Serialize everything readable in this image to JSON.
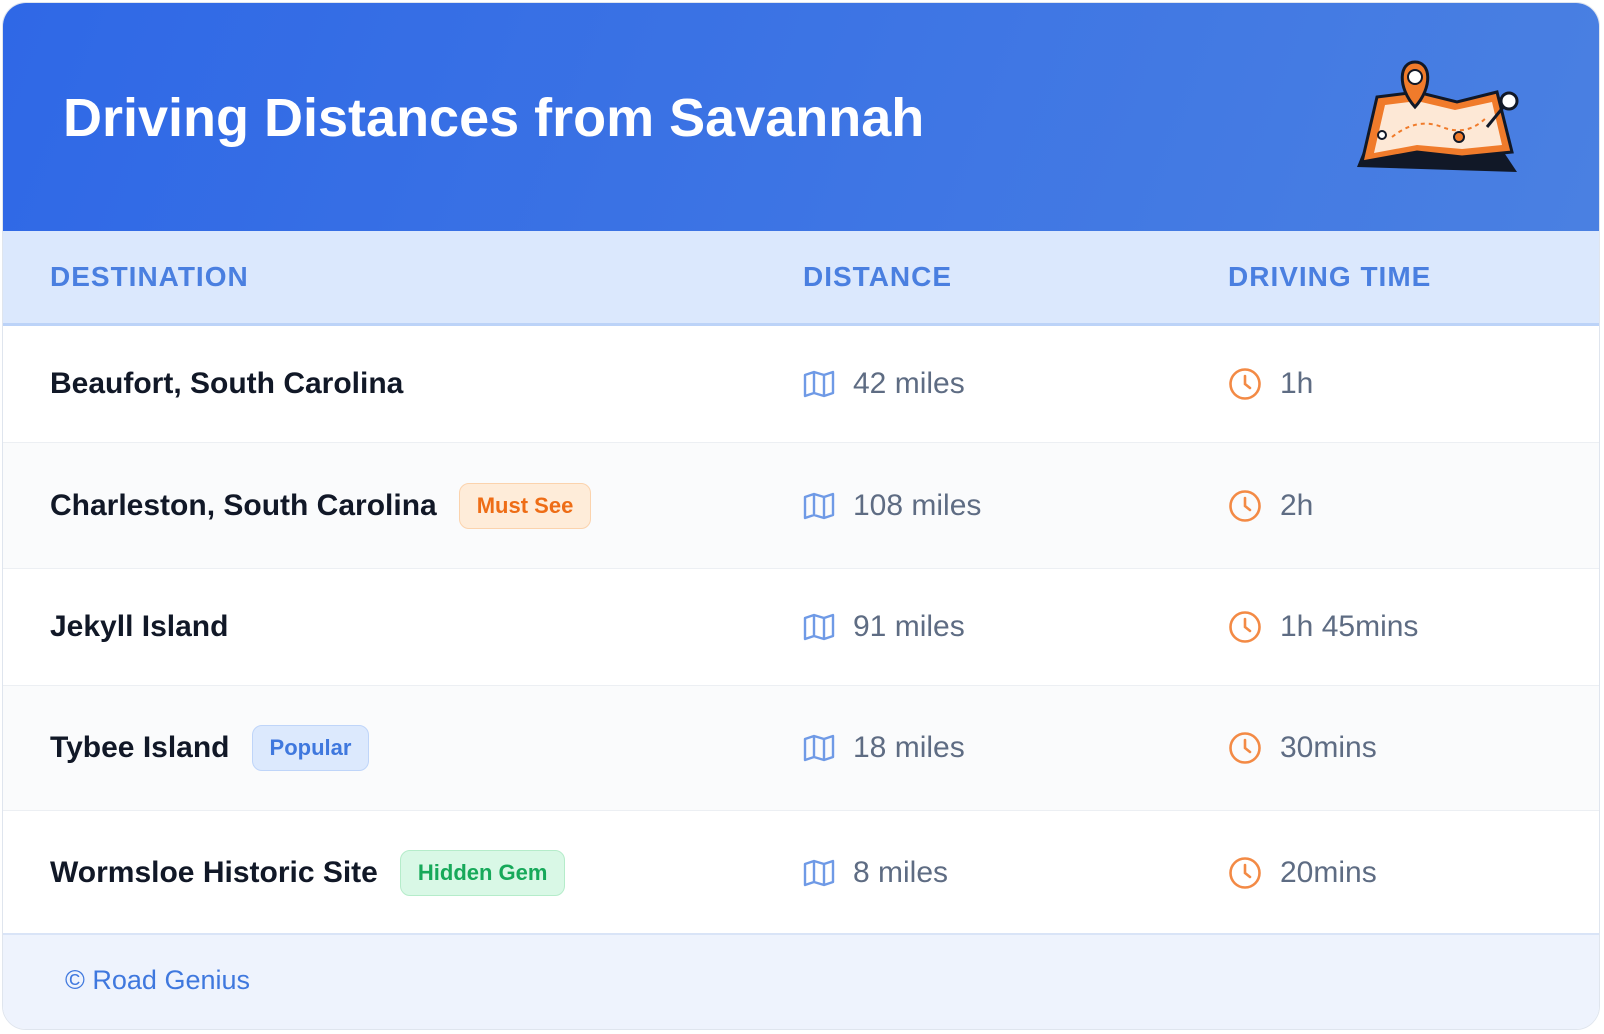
{
  "header": {
    "title": "Driving Distances from Savannah"
  },
  "table": {
    "columns": [
      "DESTINATION",
      "DISTANCE",
      "DRIVING TIME"
    ],
    "rows": [
      {
        "destination": "Beaufort, South Carolina",
        "distance": "42 miles",
        "time": "1h"
      },
      {
        "destination": "Charleston, South Carolina",
        "badge": {
          "label": "Must See",
          "tone": "orange"
        },
        "distance": "108 miles",
        "time": "2h"
      },
      {
        "destination": "Jekyll Island",
        "distance": "91 miles",
        "time": "1h 45mins"
      },
      {
        "destination": "Tybee Island",
        "badge": {
          "label": "Popular",
          "tone": "blue"
        },
        "distance": "18 miles",
        "time": "30mins"
      },
      {
        "destination": "Wormsloe Historic Site",
        "badge": {
          "label": "Hidden Gem",
          "tone": "green"
        },
        "distance": "8 miles",
        "time": "20mins"
      }
    ]
  },
  "footer": {
    "text": "© Road Genius"
  }
}
